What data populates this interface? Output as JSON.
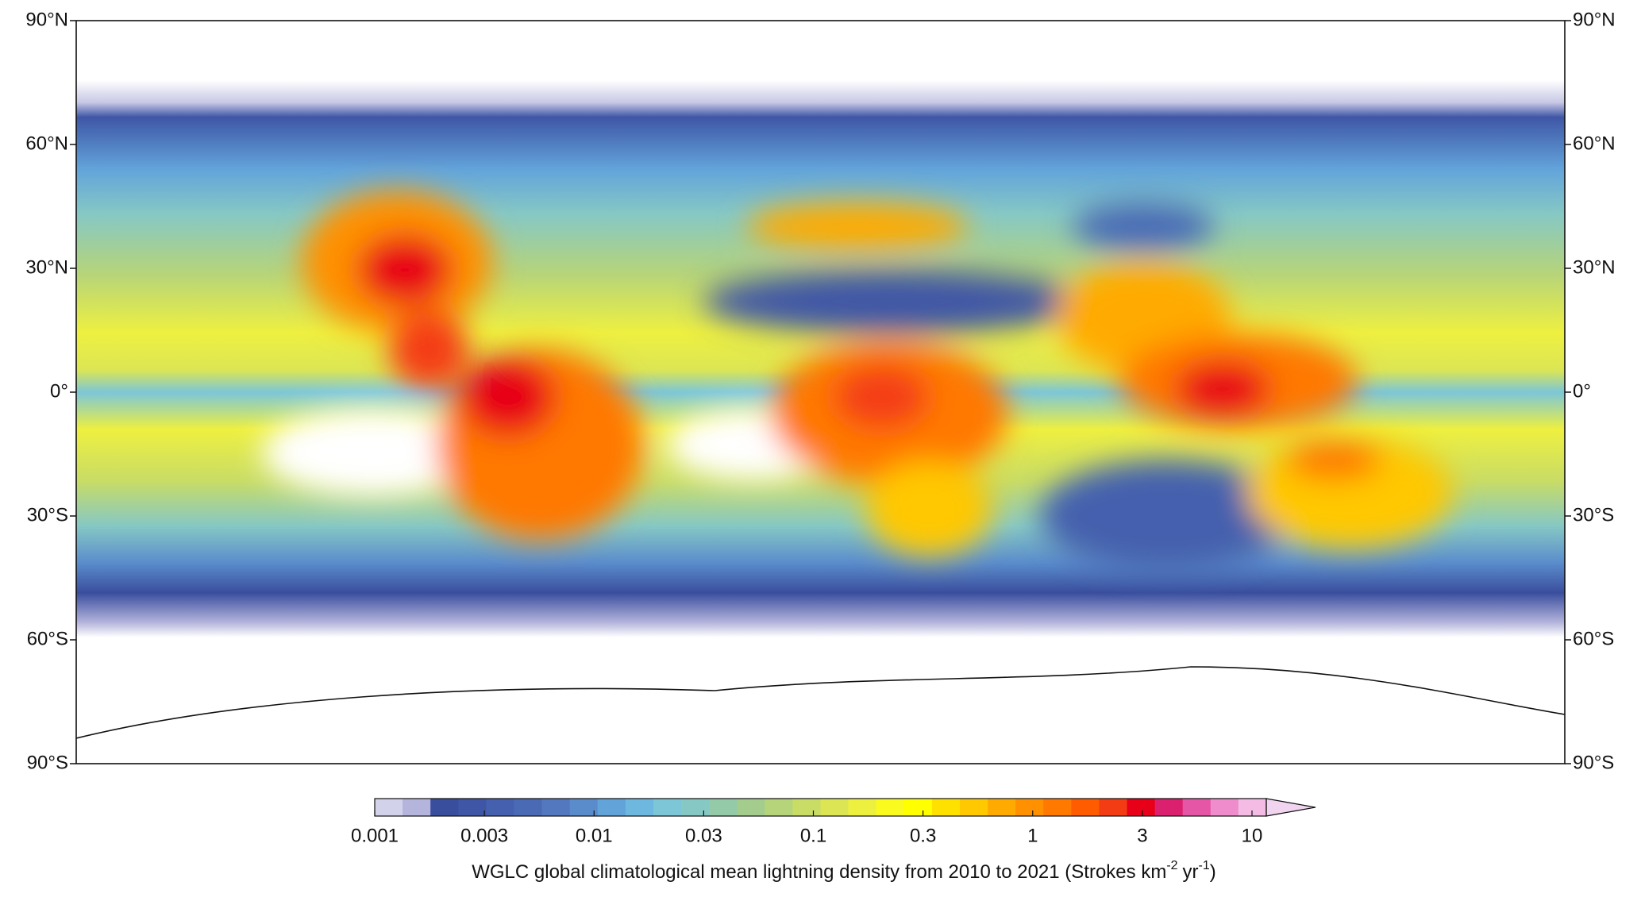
{
  "map": {
    "lat_labels": [
      "90°N",
      "60°N",
      "30°N",
      "0°",
      "30°S",
      "60°S",
      "90°S"
    ],
    "colorbar": {
      "tick_labels": [
        "0.001",
        "0.003",
        "0.01",
        "0.03",
        "0.1",
        "0.3",
        "1",
        "3",
        "10"
      ],
      "colors": [
        "#d2d2ea",
        "#b4b4dc",
        "#3a4e9e",
        "#3f56a6",
        "#4560ae",
        "#4a6ab6",
        "#5478c0",
        "#5a8ccc",
        "#62a4da",
        "#6eb8e0",
        "#7cc6d8",
        "#86c8c4",
        "#94caa8",
        "#a4cc8c",
        "#b6d47a",
        "#c8dc66",
        "#dce654",
        "#eef040",
        "#fafa1e",
        "#ffff00",
        "#ffe100",
        "#ffc800",
        "#ffaa00",
        "#ff9000",
        "#ff7800",
        "#ff5c00",
        "#f43c14",
        "#e80018",
        "#dc2070",
        "#e656a6",
        "#ee8ccc",
        "#f4bce4"
      ],
      "arrow_color": "#f0d4f0"
    },
    "caption": {
      "main": "WGLC global climatological mean lightning density from 2010 to 2021 (Strokes km",
      "exp_km": "-2",
      "yr": "yr",
      "exp_yr": "-1",
      "close": ")"
    }
  }
}
